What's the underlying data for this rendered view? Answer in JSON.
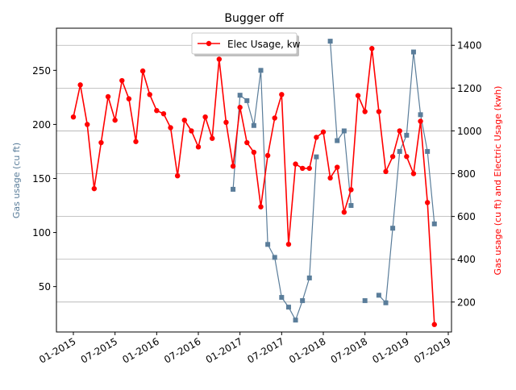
{
  "chart_data": {
    "type": "line",
    "title": "Bugger off",
    "xlabel": "",
    "ylabel_left": "Gas usage (cu ft)",
    "ylabel_right": "Gas usage (cu ft) and Electric Usage (kwh)",
    "x_ticks": [
      "01-2015",
      "07-2015",
      "01-2016",
      "07-2016",
      "01-2017",
      "07-2017",
      "01-2018",
      "07-2018",
      "01-2019",
      "07-2019"
    ],
    "y_left_ticks": [
      50,
      100,
      150,
      200,
      250
    ],
    "y_right_ticks": [
      200,
      400,
      600,
      800,
      1000,
      1200,
      1400
    ],
    "y_left_lim": [
      8,
      289
    ],
    "y_right_lim": [
      60,
      1480
    ],
    "grid": "horizontal (right axis)",
    "legend": {
      "position": "top-center",
      "entries": [
        "Elec Usage, kw"
      ]
    },
    "colors": {
      "gas": "#5a7d9a",
      "electric": "#ff0000"
    },
    "series": [
      {
        "name": "Elec Usage, kw",
        "axis": "right",
        "marker": "circle",
        "points": [
          [
            "2015-01",
            1065
          ],
          [
            "2015-02",
            1215
          ],
          [
            "2015-03",
            1030
          ],
          [
            "2015-04",
            730
          ],
          [
            "2015-05",
            945
          ],
          [
            "2015-06",
            1160
          ],
          [
            "2015-07",
            1050
          ],
          [
            "2015-08",
            1235
          ],
          [
            "2015-09",
            1150
          ],
          [
            "2015-10",
            950
          ],
          [
            "2015-11",
            1280
          ],
          [
            "2015-12",
            1170
          ],
          [
            "2016-01",
            1095
          ],
          [
            "2016-02",
            1080
          ],
          [
            "2016-03",
            1015
          ],
          [
            "2016-04",
            790
          ],
          [
            "2016-05",
            1050
          ],
          [
            "2016-06",
            1000
          ],
          [
            "2016-07",
            925
          ],
          [
            "2016-08",
            1065
          ],
          [
            "2016-09",
            965
          ],
          [
            "2016-10",
            1335
          ],
          [
            "2016-11",
            1040
          ],
          [
            "2016-12",
            835
          ],
          [
            "2017-01",
            1110
          ],
          [
            "2017-02",
            945
          ],
          [
            "2017-03",
            900
          ],
          [
            "2017-04",
            645
          ],
          [
            "2017-05",
            885
          ],
          [
            "2017-06",
            1060
          ],
          [
            "2017-07",
            1170
          ],
          [
            "2017-08",
            470
          ],
          [
            "2017-09",
            845
          ],
          [
            "2017-10",
            825
          ],
          [
            "2017-11",
            825
          ],
          [
            "2017-12",
            970
          ],
          [
            "2018-01",
            995
          ],
          [
            "2018-02",
            780
          ],
          [
            "2018-03",
            830
          ],
          [
            "2018-04",
            620
          ],
          [
            "2018-05",
            725
          ],
          [
            "2018-06",
            1165
          ],
          [
            "2018-07",
            1090
          ],
          [
            "2018-08",
            1385
          ],
          [
            "2018-09",
            1090
          ],
          [
            "2018-10",
            810
          ],
          [
            "2018-11",
            880
          ],
          [
            "2018-12",
            1000
          ],
          [
            "2019-01",
            880
          ],
          [
            "2019-02",
            800
          ],
          [
            "2019-03",
            1045
          ],
          [
            "2019-04",
            665
          ],
          [
            "2019-05",
            95
          ]
        ]
      },
      {
        "name": "",
        "axis": "left",
        "marker": "square",
        "points": [
          [
            "2016-12",
            140
          ],
          [
            "2017-01",
            227
          ],
          [
            "2017-02",
            222
          ],
          [
            "2017-03",
            199
          ],
          [
            "2017-04",
            250
          ],
          [
            "2017-05",
            89
          ],
          [
            "2017-06",
            77
          ],
          [
            "2017-07",
            40
          ],
          [
            "2017-08",
            31
          ],
          [
            "2017-09",
            19
          ],
          [
            "2017-10",
            37
          ],
          [
            "2017-11",
            58
          ],
          [
            "2017-12",
            170
          ],
          [
            "2018-01",
            null
          ],
          [
            "2018-02",
            277
          ],
          [
            "2018-03",
            185
          ],
          [
            "2018-04",
            194
          ],
          [
            "2018-05",
            125
          ],
          [
            "2018-06",
            null
          ],
          [
            "2018-07",
            37
          ],
          [
            "2018-08",
            null
          ],
          [
            "2018-09",
            42
          ],
          [
            "2018-10",
            35
          ],
          [
            "2018-11",
            104
          ],
          [
            "2018-12",
            175
          ],
          [
            "2019-01",
            190
          ],
          [
            "2019-02",
            267
          ],
          [
            "2019-03",
            209
          ],
          [
            "2019-04",
            175
          ],
          [
            "2019-05",
            108
          ]
        ]
      }
    ]
  }
}
